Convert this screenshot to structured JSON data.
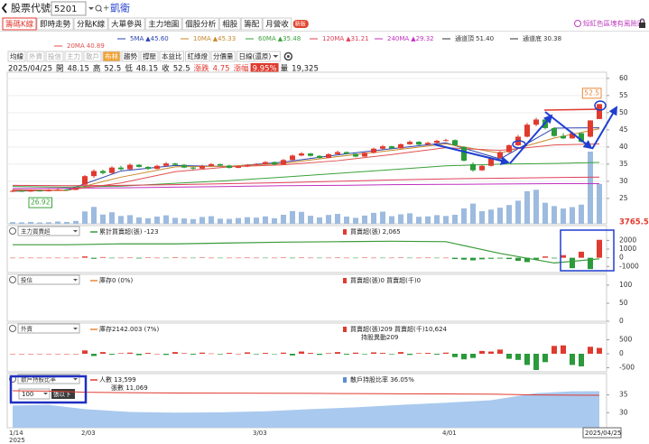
{
  "header": {
    "label": "股票代號",
    "code": "5201",
    "name": "凱衛"
  },
  "tabs": [
    "籌碼K線",
    "即時走勢",
    "分點K線",
    "大單參與",
    "主力地圖",
    "個股分析",
    "相股",
    "籌配",
    "月營收"
  ],
  "tab_badge": "新版",
  "risk_note": "短紅色區塊有風險區",
  "subtabs": [
    {
      "text": "均線"
    },
    {
      "text": "外資",
      "dim": true
    },
    {
      "text": "投信",
      "dim": true
    },
    {
      "text": "主力",
      "dim": true
    },
    {
      "text": "散戶",
      "dim": true
    },
    {
      "text": "布林",
      "active": true
    },
    {
      "text": "趨勢"
    },
    {
      "text": "撐壓"
    },
    {
      "text": "本益比"
    },
    {
      "text": "紅綠燈"
    },
    {
      "text": "分價量"
    },
    {
      "text": "日線(還原)",
      "dropdown": true
    }
  ],
  "info": {
    "date": "2025/04/25",
    "items": [
      {
        "label": "開",
        "value": "48.15"
      },
      {
        "label": "高",
        "value": "52.5"
      },
      {
        "label": "低",
        "value": "48.15"
      },
      {
        "label": "收",
        "value": "52.5"
      },
      {
        "label": "漲跌",
        "value": "4.75",
        "color": "#e03a2f"
      },
      {
        "label": "漲幅",
        "value": "9.95%",
        "color": "#e03a2f",
        "highlight": true
      },
      {
        "label": "量",
        "value": "19,325"
      }
    ]
  },
  "chart_data": [
    {
      "type": "candlestick",
      "categories": [
        "1/14",
        null,
        null,
        null,
        null,
        null,
        null,
        null,
        "2/03",
        null,
        null,
        null,
        null,
        null,
        null,
        null,
        null,
        null,
        null,
        null,
        null,
        null,
        null,
        null,
        null,
        null,
        null,
        "3/03",
        null,
        null,
        null,
        null,
        null,
        null,
        null,
        null,
        null,
        null,
        null,
        null,
        null,
        null,
        null,
        null,
        null,
        null,
        null,
        null,
        "4/01",
        null,
        null,
        null,
        null,
        null,
        null,
        null,
        null,
        null,
        null,
        null,
        null,
        null,
        null,
        null,
        null,
        null
      ],
      "year_label": "2025",
      "last_date_label": "2025/04/25",
      "ohlc": [
        [
          27.0,
          27.6,
          26.8,
          27.2
        ],
        [
          27.2,
          27.5,
          26.9,
          27.0
        ],
        [
          27.0,
          27.6,
          26.92,
          27.3
        ],
        [
          27.3,
          27.5,
          27.0,
          27.1
        ],
        [
          27.1,
          27.7,
          27.0,
          27.4
        ],
        [
          27.4,
          27.9,
          27.2,
          27.6
        ],
        [
          27.6,
          27.8,
          27.3,
          27.5
        ],
        [
          27.5,
          28.3,
          27.4,
          28.0
        ],
        [
          29.0,
          31.8,
          28.8,
          31.5
        ],
        [
          31.5,
          33.5,
          31.0,
          33.0
        ],
        [
          33.0,
          33.4,
          32.0,
          32.4
        ],
        [
          32.4,
          34.4,
          32.2,
          34.0
        ],
        [
          34.0,
          34.5,
          33.2,
          33.5
        ],
        [
          33.5,
          35.2,
          33.4,
          34.8
        ],
        [
          34.8,
          35.0,
          34.0,
          34.2
        ],
        [
          34.2,
          34.4,
          33.3,
          33.6
        ],
        [
          33.6,
          34.8,
          33.5,
          34.5
        ],
        [
          34.5,
          35.6,
          34.3,
          35.2
        ],
        [
          35.2,
          35.4,
          34.5,
          34.8
        ],
        [
          34.8,
          35.0,
          33.8,
          34.0
        ],
        [
          34.0,
          34.2,
          33.4,
          33.7
        ],
        [
          33.7,
          34.8,
          33.6,
          34.5
        ],
        [
          34.5,
          35.3,
          34.3,
          35.0
        ],
        [
          35.0,
          35.1,
          34.4,
          34.6
        ],
        [
          34.6,
          34.8,
          33.7,
          33.9
        ],
        [
          33.9,
          34.5,
          33.8,
          34.3
        ],
        [
          34.3,
          35.0,
          34.1,
          34.8
        ],
        [
          34.8,
          35.3,
          34.6,
          35.0
        ],
        [
          35.0,
          35.9,
          34.8,
          35.6
        ],
        [
          35.6,
          35.8,
          34.7,
          34.9
        ],
        [
          34.9,
          36.5,
          34.8,
          36.2
        ],
        [
          36.2,
          37.8,
          36.0,
          37.5
        ],
        [
          37.5,
          38.5,
          37.3,
          38.1
        ],
        [
          38.1,
          38.3,
          37.2,
          37.4
        ],
        [
          37.4,
          37.6,
          36.6,
          36.8
        ],
        [
          36.8,
          38.2,
          36.7,
          37.9
        ],
        [
          37.9,
          38.9,
          37.7,
          38.5
        ],
        [
          38.5,
          38.7,
          37.8,
          38.0
        ],
        [
          38.0,
          38.1,
          37.0,
          37.2
        ],
        [
          37.2,
          38.6,
          37.1,
          38.3
        ],
        [
          38.3,
          39.8,
          38.1,
          39.5
        ],
        [
          39.5,
          40.6,
          39.3,
          40.2
        ],
        [
          40.2,
          40.4,
          39.4,
          39.6
        ],
        [
          39.6,
          41.0,
          39.5,
          40.8
        ],
        [
          40.8,
          41.9,
          40.6,
          41.5
        ],
        [
          41.5,
          41.7,
          40.5,
          40.7
        ],
        [
          40.7,
          41.5,
          40.6,
          41.2
        ],
        [
          41.2,
          42.1,
          41.0,
          41.8
        ],
        [
          41.8,
          42.4,
          41.6,
          42.0
        ],
        [
          42.0,
          42.2,
          40.3,
          40.5
        ],
        [
          40.0,
          40.2,
          35.8,
          36.0
        ],
        [
          35.0,
          35.5,
          32.8,
          33.2
        ],
        [
          33.2,
          34.8,
          33.0,
          34.5
        ],
        [
          34.5,
          37.0,
          34.3,
          36.8
        ],
        [
          36.8,
          38.8,
          36.5,
          38.5
        ],
        [
          38.5,
          40.8,
          38.2,
          40.5
        ],
        [
          40.5,
          43.5,
          40.3,
          43.0
        ],
        [
          43.0,
          47.0,
          42.8,
          46.5
        ],
        [
          46.5,
          48.5,
          46.0,
          48.0
        ],
        [
          48.0,
          48.2,
          45.2,
          45.5
        ],
        [
          45.5,
          45.8,
          43.0,
          43.2
        ],
        [
          43.2,
          44.0,
          42.3,
          42.5
        ],
        [
          42.5,
          44.5,
          42.4,
          44.0
        ],
        [
          44.0,
          44.2,
          41.3,
          41.5
        ],
        [
          43.0,
          47.75,
          42.8,
          47.75
        ],
        [
          48.15,
          52.5,
          48.15,
          52.5
        ]
      ],
      "volume": [
        800,
        700,
        900,
        650,
        750,
        1100,
        900,
        1400,
        6000,
        8200,
        4500,
        5600,
        3800,
        4200,
        3100,
        2700,
        3500,
        4100,
        2900,
        2600,
        2300,
        3300,
        3700,
        2500,
        2400,
        2800,
        3200,
        3000,
        3600,
        2700,
        4400,
        6200,
        5800,
        3900,
        3100,
        4300,
        4800,
        3500,
        2900,
        4000,
        5300,
        5900,
        3700,
        4600,
        5100,
        3400,
        3600,
        4200,
        3800,
        4400,
        7500,
        9800,
        6100,
        6900,
        7800,
        9100,
        11200,
        15800,
        16500,
        10200,
        8600,
        7400,
        8100,
        9300,
        35000,
        19325
      ],
      "up_color": "#e03a2f",
      "down_color": "#2a9a3a",
      "volume_color": "#9dbbdf",
      "ylim": [
        17.6,
        61.8
      ],
      "yticks": [
        25,
        30,
        35,
        40,
        45,
        50,
        55,
        60
      ],
      "grid": true,
      "ma_x": [
        0,
        6,
        12,
        18,
        24,
        30,
        36,
        42,
        48,
        54,
        60,
        65
      ],
      "ma_legend": [
        {
          "name": "5MA",
          "label": "▲45.60",
          "color": "#2a44b0",
          "values": [
            27.1,
            27.4,
            33.0,
            34.6,
            34.3,
            35.6,
            37.7,
            39.5,
            41.2,
            36.5,
            45.5,
            45.6
          ]
        },
        {
          "name": "10MA",
          "label": "▲45.33",
          "color": "#c8862a",
          "values": [
            27.3,
            27.3,
            31.2,
            34.2,
            34.4,
            35.2,
            37.2,
            39.0,
            40.9,
            38.2,
            42.6,
            45.33
          ]
        },
        {
          "name": "60MA",
          "label": "▲35.48",
          "color": "#3aa13a",
          "values": [
            28.5,
            28.3,
            28.6,
            29.4,
            30.2,
            31.2,
            32.3,
            33.4,
            34.5,
            35.0,
            35.2,
            35.48
          ]
        },
        {
          "name": "120MA",
          "label": "▲31.21",
          "color": "#e0405a",
          "values": [
            28.8,
            28.7,
            28.8,
            29.0,
            29.3,
            29.6,
            30.0,
            30.4,
            30.7,
            30.9,
            31.1,
            31.21
          ]
        },
        {
          "name": "240MA",
          "label": "▲29.32",
          "color": "#c030c0",
          "values": [
            27.9,
            28.0,
            28.1,
            28.3,
            28.5,
            28.7,
            28.8,
            29.0,
            29.1,
            29.2,
            29.3,
            29.32
          ]
        },
        {
          "name": "通道頂",
          "label": "51.40",
          "color": "#333333"
        },
        {
          "name": "通道底",
          "label": "30.38",
          "color": "#333333"
        },
        {
          "name": "20MA",
          "label": "40.89",
          "color": "#e05050",
          "values": [
            27.5,
            27.4,
            29.5,
            32.8,
            34.2,
            34.8,
            36.0,
            37.8,
            39.8,
            39.0,
            40.6,
            40.89
          ]
        }
      ],
      "annotations": [
        {
          "index": 65,
          "value": 52.5,
          "position": "above",
          "color": "#e8883a"
        },
        {
          "index": 2,
          "value": 26.92,
          "position": "below",
          "color": "#3aa13a"
        }
      ]
    },
    {
      "type": "bar",
      "selector": "主力買賣超",
      "legend": [
        {
          "text": "累計買賣超(張) -123",
          "color": "#3a9a3a",
          "swatch": "line"
        },
        {
          "text": "買賣超(張) 2,065",
          "color": "#e03a2f",
          "swatch": "box"
        }
      ],
      "top_label": "3765.5",
      "ylim": [
        -1700,
        3700
      ],
      "yticks": [
        2000,
        1000,
        0,
        -1000
      ],
      "values": [
        0,
        0,
        0,
        0,
        0,
        0,
        0,
        0,
        150,
        -120,
        80,
        -60,
        0,
        40,
        -80,
        30,
        0,
        -50,
        60,
        0,
        -30,
        20,
        0,
        -40,
        0,
        0,
        10,
        0,
        -20,
        0,
        30,
        -60,
        40,
        0,
        -30,
        0,
        50,
        0,
        -20,
        30,
        0,
        -40,
        0,
        20,
        -30,
        0,
        10,
        -20,
        0,
        -150,
        -220,
        -300,
        -180,
        -120,
        -90,
        -150,
        -350,
        -500,
        -200,
        150,
        -80,
        300,
        -1200,
        700,
        -1300,
        2065
      ],
      "up_color": "#e03a2f",
      "down_color": "#2a9a3a",
      "line": {
        "x": [
          0,
          6,
          12,
          18,
          24,
          30,
          36,
          42,
          48,
          54,
          60,
          65
        ],
        "values": [
          1500,
          1500,
          1600,
          1600,
          1700,
          1800,
          1850,
          1900,
          1850,
          500,
          -600,
          -123
        ],
        "color": "#3a9a3a"
      }
    },
    {
      "type": "bar",
      "selector": "投信",
      "legend": [
        {
          "text": "庫存0 (0%)",
          "color": "#e8883a",
          "swatch": "line"
        },
        {
          "text": "買賣超(張)0 買賣超(千)0",
          "color": "#e03a2f",
          "swatch": "box"
        }
      ],
      "ylim": [
        0,
        130
      ],
      "yticks": [
        100,
        50,
        0
      ]
    },
    {
      "type": "bar",
      "selector": "外資",
      "legend": [
        {
          "text": "庫存2142.003 (7%)",
          "color": "#e8883a",
          "swatch": "line"
        },
        {
          "text": "買賣超(張)209 買賣超(千)10,624",
          "color": "#e03a2f",
          "swatch": "box"
        },
        {
          "text": "持股異動209"
        }
      ],
      "ylim": [
        -645,
        1097
      ],
      "yticks": [
        500,
        0,
        -500
      ],
      "values": [
        0,
        0,
        0,
        0,
        0,
        0,
        0,
        0,
        120,
        -80,
        60,
        -30,
        20,
        40,
        -50,
        30,
        0,
        -40,
        60,
        20,
        -30,
        40,
        10,
        -20,
        30,
        0,
        50,
        -20,
        30,
        -10,
        40,
        -60,
        80,
        30,
        -40,
        20,
        60,
        -30,
        40,
        -20,
        50,
        30,
        -20,
        60,
        -40,
        20,
        30,
        -30,
        40,
        -120,
        -200,
        -150,
        100,
        80,
        150,
        -180,
        -220,
        -400,
        -580,
        -300,
        280,
        300,
        -400,
        -450,
        250,
        209
      ],
      "up_color": "#e03a2f",
      "down_color": "#2a9a3a"
    },
    {
      "type": "area",
      "selector": "散戶持股比率",
      "amount": "100",
      "unit_button": "張以下",
      "legend": [
        {
          "text": "人數 13,599",
          "color": "#e03a2f",
          "swatch": "line"
        },
        {
          "text": "散戶持股比率 36.05%",
          "color": "#5a8fd0",
          "swatch": "box"
        },
        {
          "text": "張數 11,069"
        }
      ],
      "ylim": [
        25.75,
        41
      ],
      "yticks": [
        35,
        30
      ],
      "x": [
        0,
        4,
        8,
        13,
        18,
        23,
        28,
        33,
        38,
        43,
        48,
        53,
        58,
        62,
        65
      ],
      "values": [
        32.0,
        32.2,
        31.0,
        30.2,
        30.0,
        30.1,
        30.4,
        31.0,
        31.5,
        32.2,
        32.8,
        33.5,
        35.5,
        36.0,
        36.05
      ],
      "color": "#a9c9ef",
      "line": {
        "values": [
          14200,
          14150,
          14000,
          13950,
          13900,
          13880,
          13870,
          13850,
          13820,
          13800,
          13780,
          13750,
          13650,
          13620,
          13599
        ],
        "color": "#e03a2f"
      }
    }
  ]
}
